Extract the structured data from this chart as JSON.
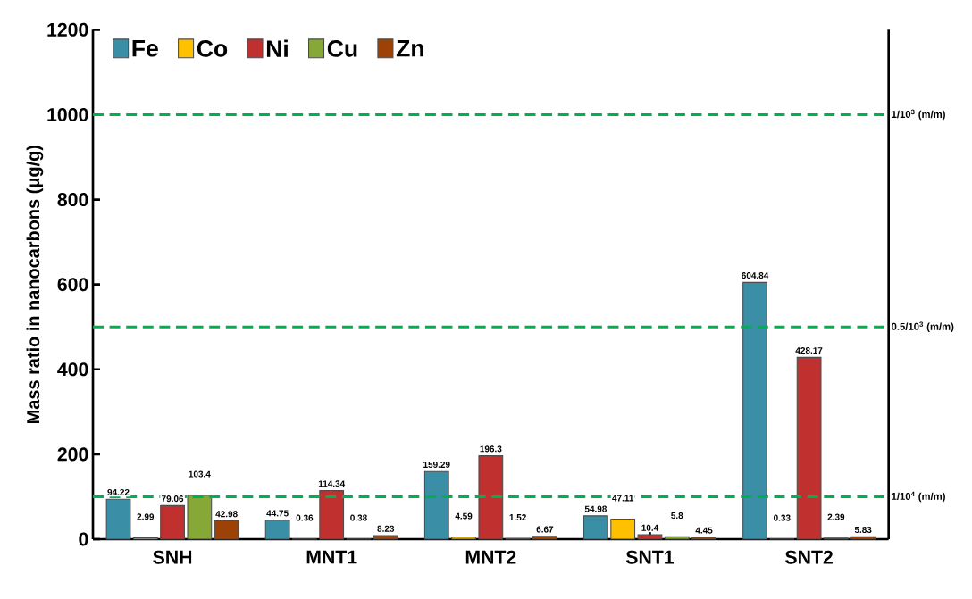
{
  "chart_data": {
    "type": "bar",
    "ylabel": "Mass ratio in nanocarbons (μg/g)",
    "categories": [
      "SNH",
      "MNT1",
      "MNT2",
      "SNT1",
      "SNT2"
    ],
    "series": [
      {
        "name": "Fe",
        "color": "#3a8fa6",
        "values": [
          94.22,
          44.75,
          159.29,
          54.98,
          604.84
        ]
      },
      {
        "name": "Co",
        "color": "#ffc000",
        "values": [
          2.99,
          0.36,
          4.59,
          47.11,
          0.33
        ]
      },
      {
        "name": "Ni",
        "color": "#c0302e",
        "values": [
          79.06,
          114.34,
          196.3,
          10.4,
          428.17
        ]
      },
      {
        "name": "Cu",
        "color": "#86a836",
        "values": [
          103.4,
          0.38,
          1.52,
          5.8,
          2.39
        ]
      },
      {
        "name": "Zn",
        "color": "#9c4206",
        "values": [
          42.98,
          8.23,
          6.67,
          4.45,
          5.83
        ]
      }
    ],
    "ylim": [
      0,
      1200
    ],
    "yticks": [
      0,
      200,
      400,
      600,
      800,
      1000,
      1200
    ],
    "grid": false,
    "legend": "top left",
    "data_labels": true,
    "ref_lines": [
      {
        "axis": "y",
        "value": 1000,
        "label": "1/10$^{3}$ (m/m)",
        "color": "#00b050",
        "line_style": "dashed"
      },
      {
        "axis": "y",
        "value": 500,
        "label": "0.5/10$^{3}$ (m/m)",
        "color": "#00b050",
        "line_style": "dashed"
      },
      {
        "axis": "y",
        "value": 100,
        "label": "1/10$^{4}$ (m/m)",
        "color": "#00b050",
        "line_style": "dashed"
      }
    ]
  }
}
